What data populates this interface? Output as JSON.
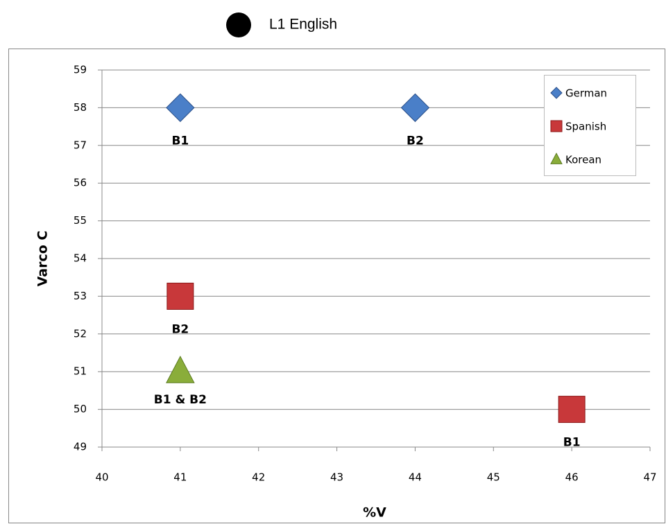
{
  "chart_data": {
    "type": "scatter",
    "annotation": "L1 English",
    "x_label": "%V",
    "y_label": "Varco C",
    "xlim": [
      40,
      47
    ],
    "xticks": [
      40,
      41,
      42,
      43,
      44,
      45,
      46,
      47
    ],
    "ylim": [
      49,
      59
    ],
    "yticks": [
      49,
      50,
      51,
      52,
      53,
      54,
      55,
      56,
      57,
      58,
      59
    ],
    "grid": true,
    "legend": "top-right",
    "series": [
      {
        "name": "German",
        "color": "#4a7fc8",
        "marker": "diamond",
        "x": [
          41,
          44
        ],
        "values": [
          58,
          58
        ],
        "point_labels": [
          "B1",
          "B2"
        ]
      },
      {
        "name": "Spanish",
        "color": "#c8383a",
        "marker": "square",
        "x": [
          41,
          46
        ],
        "values": [
          53,
          50
        ],
        "point_labels": [
          "B2",
          "B1"
        ]
      },
      {
        "name": "Korean",
        "color": "#8aad3a",
        "marker": "triangle",
        "x": [
          41
        ],
        "values": [
          51
        ],
        "point_labels": [
          "B1 & B2"
        ]
      }
    ]
  }
}
